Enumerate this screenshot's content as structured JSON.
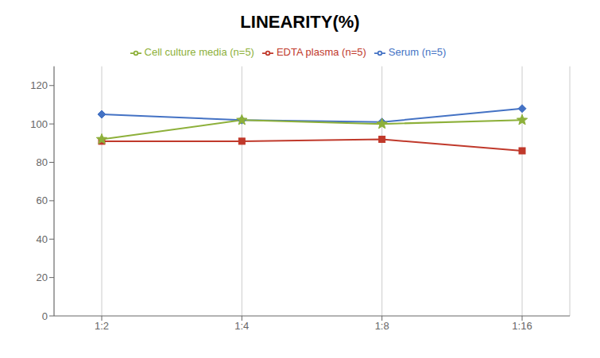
{
  "chart_data": {
    "type": "line",
    "title": "LINEARITY(%)",
    "categories": [
      "1:2",
      "1:4",
      "1:8",
      "1:16"
    ],
    "series": [
      {
        "name": "Serum (n=5)",
        "color": "#4472C4",
        "marker": "diamond",
        "values": [
          105,
          102,
          101,
          108
        ]
      },
      {
        "name": "EDTA plasma (n=5)",
        "color": "#C0392B",
        "marker": "square",
        "values": [
          91,
          91,
          92,
          86
        ]
      },
      {
        "name": "Cell culture media (n=5)",
        "color": "#8DB03A",
        "marker": "star",
        "values": [
          92,
          102,
          100,
          102
        ]
      }
    ],
    "ylim": [
      0,
      130
    ],
    "yticks": [
      0,
      20,
      40,
      60,
      80,
      100,
      120
    ],
    "grid": "x",
    "legend": "top"
  }
}
